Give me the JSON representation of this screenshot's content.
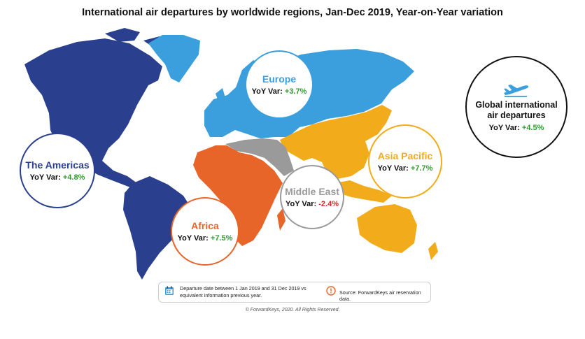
{
  "title": "International air departures by worldwide regions, Jan-Dec 2019, Year-on-Year variation",
  "colors": {
    "americas": "#2b3f8f",
    "europe": "#3a9fdc",
    "africa": "#e8652a",
    "middle_east": "#9a9a9a",
    "asia_pacific": "#f2ac1b",
    "positive": "#2e9b2e",
    "negative": "#d22a2a"
  },
  "regions": {
    "americas": {
      "name": "The Americas",
      "var_label": "YoY Var:",
      "var_value": "+4.8%"
    },
    "europe": {
      "name": "Europe",
      "var_label": "YoY Var:",
      "var_value": "+3.7%"
    },
    "asia_pacific": {
      "name": "Asia Pacific",
      "var_label": "YoY Var:",
      "var_value": "+7.7%"
    },
    "middle_east": {
      "name": "Middle East",
      "var_label": "YoY Var:",
      "var_value": "-2.4%"
    },
    "africa": {
      "name": "Africa",
      "var_label": "YoY Var:",
      "var_value": "+7.5%"
    }
  },
  "global": {
    "name": "Global international air departures",
    "var_label": "YoY Var:",
    "var_value": "+4.5%",
    "icon": "airplane-icon"
  },
  "footer": {
    "date_note": "Departure date between 1 Jan 2019 and 31 Dec 2019 vs equivalent information previous year.",
    "source_note": "Source: ForwardKeys air reservation data.",
    "copyright": "© ForwardKeys, 2020. All Rights Reserved."
  }
}
